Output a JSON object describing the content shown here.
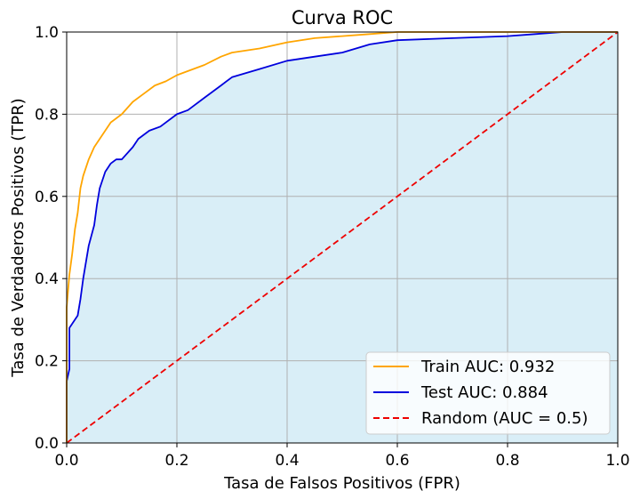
{
  "chart_data": {
    "type": "line",
    "title": "Curva ROC",
    "xlabel": "Tasa de Falsos Positivos (FPR)",
    "ylabel": "Tasa de Verdaderos Positivos (TPR)",
    "xlim": [
      0.0,
      1.0
    ],
    "ylim": [
      0.0,
      1.0
    ],
    "xticks": [
      "0.0",
      "0.2",
      "0.4",
      "0.6",
      "0.8",
      "1.0"
    ],
    "yticks": [
      "0.0",
      "0.2",
      "0.4",
      "0.6",
      "0.8",
      "1.0"
    ],
    "grid": true,
    "legend_position": "lower-right",
    "fill_under": "Test",
    "fill_color": "#d9eef7",
    "series": [
      {
        "name": "Train AUC: 0.932",
        "color": "#ffa500",
        "style": "solid",
        "x": [
          0.0,
          0.0,
          0.005,
          0.01,
          0.015,
          0.02,
          0.025,
          0.03,
          0.04,
          0.05,
          0.06,
          0.07,
          0.08,
          0.09,
          0.1,
          0.12,
          0.14,
          0.16,
          0.18,
          0.2,
          0.22,
          0.25,
          0.28,
          0.3,
          0.35,
          0.4,
          0.45,
          0.5,
          0.55,
          0.6,
          0.65,
          1.0
        ],
        "y": [
          0.0,
          0.33,
          0.41,
          0.46,
          0.52,
          0.56,
          0.62,
          0.65,
          0.69,
          0.72,
          0.74,
          0.76,
          0.78,
          0.79,
          0.8,
          0.83,
          0.85,
          0.87,
          0.88,
          0.895,
          0.905,
          0.92,
          0.94,
          0.95,
          0.96,
          0.975,
          0.985,
          0.99,
          0.995,
          1.0,
          1.0,
          1.0
        ]
      },
      {
        "name": "Test AUC: 0.884",
        "color": "#0000dd",
        "style": "solid",
        "x": [
          0.0,
          0.0,
          0.005,
          0.005,
          0.01,
          0.02,
          0.025,
          0.03,
          0.035,
          0.04,
          0.05,
          0.055,
          0.06,
          0.07,
          0.08,
          0.09,
          0.1,
          0.12,
          0.13,
          0.15,
          0.17,
          0.2,
          0.22,
          0.25,
          0.28,
          0.3,
          0.35,
          0.4,
          0.45,
          0.5,
          0.55,
          0.6,
          0.7,
          0.8,
          0.85,
          0.9,
          0.96,
          1.0
        ],
        "y": [
          0.0,
          0.15,
          0.18,
          0.28,
          0.29,
          0.31,
          0.35,
          0.4,
          0.44,
          0.48,
          0.53,
          0.58,
          0.62,
          0.66,
          0.68,
          0.69,
          0.69,
          0.72,
          0.74,
          0.76,
          0.77,
          0.8,
          0.81,
          0.84,
          0.87,
          0.89,
          0.91,
          0.93,
          0.94,
          0.95,
          0.97,
          0.98,
          0.985,
          0.99,
          0.995,
          1.0,
          1.0,
          1.0
        ]
      },
      {
        "name": "Random (AUC = 0.5)",
        "color": "#ee0000",
        "style": "dashed",
        "x": [
          0.0,
          1.0
        ],
        "y": [
          0.0,
          1.0
        ]
      }
    ]
  }
}
